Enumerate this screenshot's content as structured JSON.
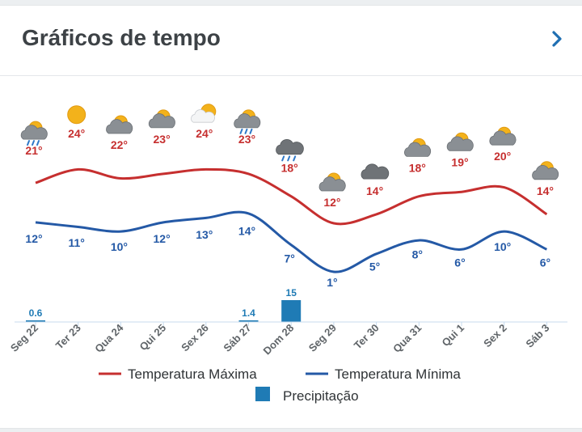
{
  "header": {
    "title": "Gráficos de tempo",
    "chevron_icon": "chevron-right-icon"
  },
  "colors": {
    "max": "#c62f2f",
    "min": "#2459a6",
    "precip": "#1f7bb5",
    "axis": "#c7dbee",
    "day_label": "#5f6468"
  },
  "chart_data": {
    "type": "line",
    "categories": [
      "Seg 22",
      "Ter 23",
      "Qua 24",
      "Qui 25",
      "Sex 26",
      "Sáb 27",
      "Dom 28",
      "Seg 29",
      "Ter 30",
      "Qua 31",
      "Qui 1",
      "Sex 2",
      "Sáb 3"
    ],
    "icons": [
      "cloud-sun-rain-icon",
      "sun-icon",
      "cloud-sun-icon",
      "cloud-sun-icon",
      "sun-cloud-icon",
      "cloud-sun-rain-icon",
      "rain-cloud-icon",
      "cloud-sun-icon",
      "cloud-icon",
      "cloud-sun-icon",
      "cloud-sun-icon",
      "cloud-sun-icon",
      "cloud-sun-icon"
    ],
    "series": [
      {
        "name": "Temperatura Máxima",
        "values": [
          21,
          24,
          22,
          23,
          24,
          23,
          18,
          12,
          14,
          18,
          19,
          20,
          14
        ],
        "labels": [
          "21°",
          "24°",
          "22°",
          "23°",
          "24°",
          "23°",
          "18°",
          "12°",
          "14°",
          "18°",
          "19°",
          "20°",
          "14°"
        ]
      },
      {
        "name": "Temperatura Mínima",
        "values": [
          12,
          11,
          10,
          12,
          13,
          14,
          7,
          1,
          5,
          8,
          6,
          10,
          6
        ],
        "labels": [
          "12°",
          "11°",
          "10°",
          "12°",
          "13°",
          "14°",
          "7°",
          "1°",
          "5°",
          "8°",
          "6°",
          "10°",
          "6°"
        ]
      },
      {
        "name": "Precipitação",
        "type": "bar",
        "values": [
          0.6,
          null,
          null,
          null,
          null,
          1.4,
          15,
          null,
          null,
          null,
          null,
          null,
          null
        ],
        "labels": [
          "0.6",
          "",
          "",
          "",
          "",
          "1.4",
          "15",
          "",
          "",
          "",
          "",
          "",
          ""
        ]
      }
    ],
    "legend": {
      "max": "Temperatura Máxima",
      "min": "Temperatura Mínima",
      "precip": "Precipitação",
      "placement": "bottom"
    },
    "grid": false
  }
}
